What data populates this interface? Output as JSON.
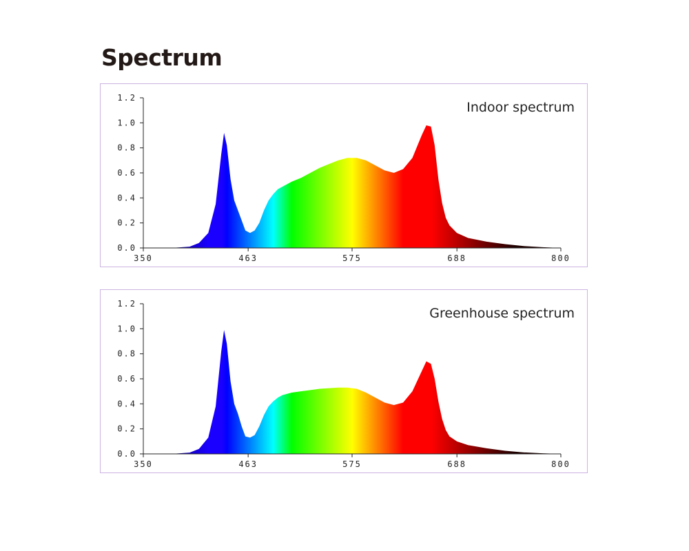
{
  "page": {
    "title": "Spectrum"
  },
  "chart_data": [
    {
      "type": "area",
      "title": "Indoor spectrum",
      "xlabel": "",
      "ylabel": "",
      "xlim": [
        350,
        800
      ],
      "ylim": [
        0,
        1.2
      ],
      "x_ticks": [
        "350",
        "463",
        "575",
        "688",
        "800"
      ],
      "y_ticks": [
        "1.2",
        "1.0",
        "0.8",
        "0.6",
        "0.4",
        "0.2",
        "0.0"
      ],
      "fill": "wavelength-rainbow",
      "grid": false,
      "series": [
        {
          "x": [
            350,
            380,
            400,
            410,
            420,
            428,
            434,
            437,
            440,
            444,
            448,
            452,
            456,
            460,
            465,
            470,
            475,
            480,
            485,
            490,
            495,
            500,
            510,
            520,
            530,
            540,
            550,
            560,
            570,
            580,
            590,
            600,
            610,
            620,
            630,
            640,
            650,
            655,
            660,
            664,
            668,
            672,
            676,
            680,
            688,
            700,
            720,
            740,
            760,
            780,
            800
          ],
          "values": [
            0.0,
            0.0,
            0.01,
            0.04,
            0.12,
            0.35,
            0.75,
            0.92,
            0.82,
            0.55,
            0.38,
            0.3,
            0.22,
            0.14,
            0.12,
            0.14,
            0.2,
            0.3,
            0.38,
            0.43,
            0.47,
            0.49,
            0.53,
            0.56,
            0.6,
            0.64,
            0.67,
            0.7,
            0.72,
            0.72,
            0.7,
            0.66,
            0.62,
            0.6,
            0.63,
            0.72,
            0.9,
            0.98,
            0.97,
            0.82,
            0.55,
            0.36,
            0.24,
            0.18,
            0.12,
            0.08,
            0.05,
            0.03,
            0.015,
            0.006,
            0.0
          ]
        }
      ]
    },
    {
      "type": "area",
      "title": "Greenhouse spectrum",
      "xlabel": "",
      "ylabel": "",
      "xlim": [
        350,
        800
      ],
      "ylim": [
        0,
        1.2
      ],
      "x_ticks": [
        "350",
        "463",
        "575",
        "688",
        "800"
      ],
      "y_ticks": [
        "1.2",
        "1.0",
        "0.8",
        "0.6",
        "0.4",
        "0.2",
        "0.0"
      ],
      "fill": "wavelength-rainbow",
      "grid": false,
      "series": [
        {
          "x": [
            350,
            380,
            400,
            410,
            420,
            428,
            434,
            437,
            440,
            444,
            448,
            452,
            456,
            460,
            465,
            470,
            475,
            480,
            485,
            490,
            495,
            500,
            510,
            520,
            530,
            540,
            550,
            560,
            570,
            580,
            590,
            600,
            610,
            620,
            630,
            640,
            650,
            655,
            660,
            664,
            668,
            672,
            676,
            680,
            688,
            700,
            720,
            740,
            760,
            780,
            800
          ],
          "values": [
            0.0,
            0.0,
            0.01,
            0.04,
            0.13,
            0.38,
            0.82,
            0.99,
            0.88,
            0.58,
            0.4,
            0.32,
            0.22,
            0.14,
            0.13,
            0.15,
            0.22,
            0.31,
            0.38,
            0.42,
            0.45,
            0.47,
            0.49,
            0.5,
            0.51,
            0.52,
            0.525,
            0.53,
            0.53,
            0.52,
            0.49,
            0.45,
            0.41,
            0.39,
            0.41,
            0.5,
            0.66,
            0.74,
            0.72,
            0.6,
            0.42,
            0.28,
            0.19,
            0.14,
            0.1,
            0.07,
            0.045,
            0.025,
            0.012,
            0.005,
            0.0
          ]
        }
      ]
    }
  ]
}
